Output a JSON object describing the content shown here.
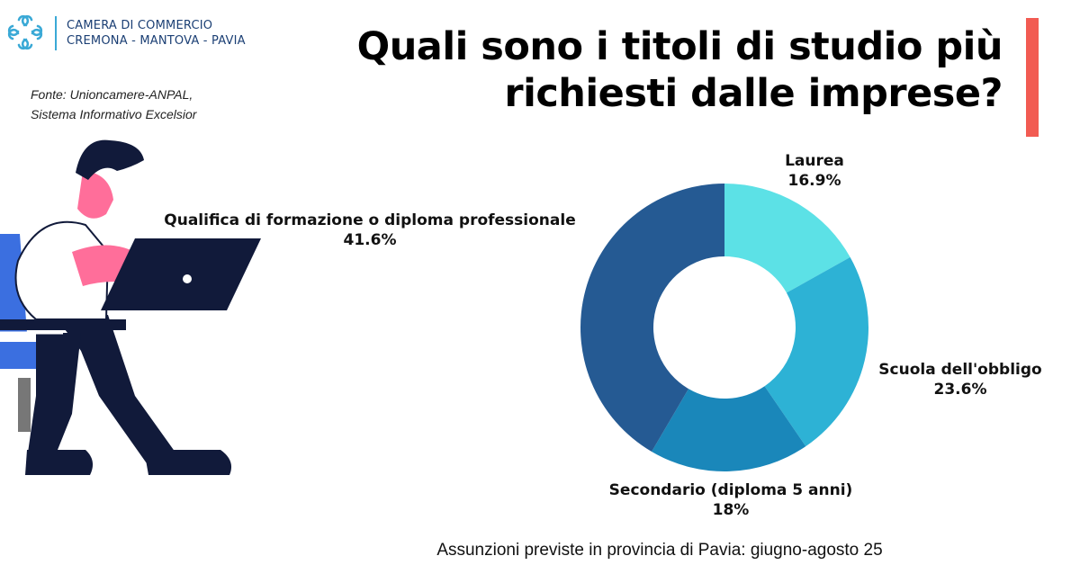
{
  "header": {
    "org_line1": "CAMERA DI COMMERCIO",
    "org_line2": "CREMONA - MANTOVA - PAVIA",
    "source_line1": "Fonte: Unioncamere-ANPAL,",
    "source_line2": "Sistema Informativo Excelsior",
    "title_line1": "Quali sono i titoli di studio più",
    "title_line2": "richiesti dalle imprese?"
  },
  "footer": {
    "caption": "Assunzioni previste in provincia di Pavia: giugno-agosto 25"
  },
  "colors": {
    "accent": "#f25b52",
    "brand": "#1b3f74"
  },
  "chart_data": {
    "type": "pie",
    "variant": "donut",
    "title": "Quali sono i titoli di studio più richiesti dalle imprese?",
    "slices": [
      {
        "label": "Laurea",
        "value": 16.9,
        "display": "16.9%",
        "color": "#5ce1e6"
      },
      {
        "label": "Scuola dell'obbligo",
        "value": 23.6,
        "display": "23.6%",
        "color": "#2db2d5"
      },
      {
        "label": "Secondario (diploma 5 anni)",
        "value": 18,
        "display": "18%",
        "color": "#1a87ba"
      },
      {
        "label": "Qualifica di formazione o diploma professionale",
        "value": 41.6,
        "display": "41.6%",
        "color": "#255a93"
      }
    ],
    "start_angle_deg": 0,
    "direction": "clockwise",
    "legend": "none, direct labels"
  }
}
